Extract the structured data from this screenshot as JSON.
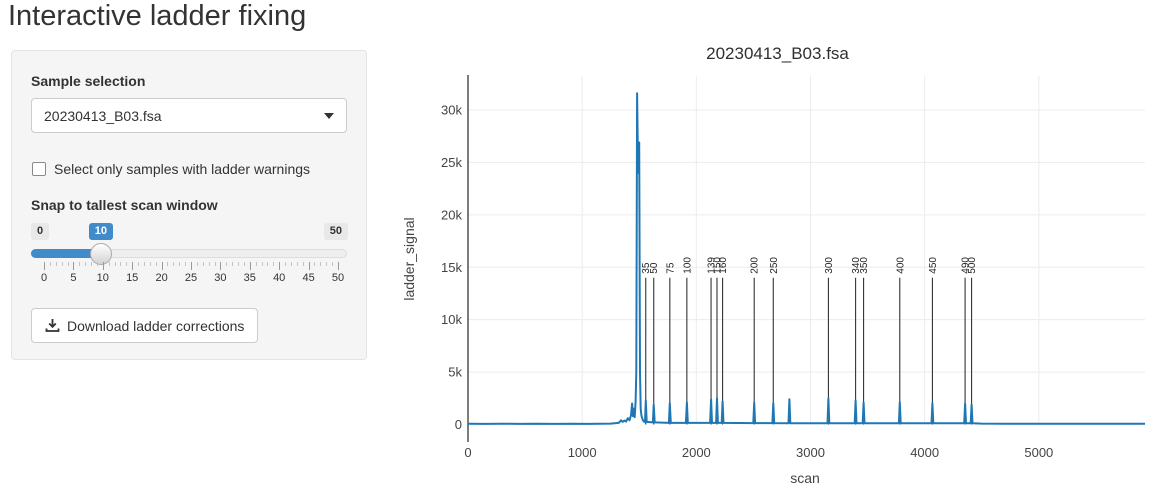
{
  "page": {
    "title": "Interactive ladder fixing"
  },
  "sidebar": {
    "sample_selection_label": "Sample selection",
    "sample_selected": "20230413_B03.fsa",
    "checkbox_label": "Select only samples with ladder warnings",
    "checkbox_checked": false,
    "slider_label": "Snap to tallest scan window",
    "slider": {
      "min": 0,
      "max": 50,
      "value": 10,
      "min_label": "0",
      "max_label": "50",
      "value_label": "10",
      "major_step": 5,
      "tick_labels": [
        "0",
        "5",
        "10",
        "15",
        "20",
        "25",
        "30",
        "35",
        "40",
        "45",
        "50"
      ]
    },
    "download_button_label": "Download ladder corrections",
    "accent_color": "#428bca"
  },
  "chart_data": {
    "type": "line",
    "title": "20230413_B03.fsa",
    "xlabel": "scan",
    "ylabel": "ladder_signal",
    "xlim": [
      0,
      5930
    ],
    "ylim": [
      -1700,
      33300
    ],
    "grid": true,
    "line_color": "#1f77b4",
    "marker_color": "#333333",
    "x_ticks": {
      "values": [
        0,
        1000,
        2000,
        3000,
        4000,
        5000
      ],
      "labels": [
        "0",
        "1000",
        "2000",
        "3000",
        "4000",
        "5000"
      ]
    },
    "y_ticks": {
      "values": [
        0,
        5000,
        10000,
        15000,
        20000,
        25000,
        30000
      ],
      "labels": [
        "0",
        "5k",
        "10k",
        "15k",
        "20k",
        "25k",
        "30k"
      ]
    },
    "ladder_markers": {
      "sizes": [
        "35",
        "50",
        "75",
        "100",
        "139",
        "150",
        "160",
        "200",
        "250",
        "300",
        "340",
        "350",
        "400",
        "450",
        "490",
        "500"
      ],
      "scans": [
        1557,
        1627,
        1768,
        1917,
        2129,
        2181,
        2230,
        2507,
        2674,
        3157,
        3395,
        3465,
        3782,
        4068,
        4354,
        4411
      ],
      "line_top": 14000
    },
    "series": [
      {
        "name": "ladder_signal",
        "points": [
          [
            0,
            70
          ],
          [
            150,
            60
          ],
          [
            300,
            80
          ],
          [
            450,
            60
          ],
          [
            600,
            75
          ],
          [
            750,
            60
          ],
          [
            900,
            75
          ],
          [
            1050,
            60
          ],
          [
            1150,
            70
          ],
          [
            1250,
            90
          ],
          [
            1320,
            150
          ],
          [
            1340,
            400
          ],
          [
            1355,
            250
          ],
          [
            1370,
            380
          ],
          [
            1385,
            280
          ],
          [
            1400,
            600
          ],
          [
            1415,
            400
          ],
          [
            1428,
            900
          ],
          [
            1437,
            2000
          ],
          [
            1444,
            800
          ],
          [
            1452,
            1500
          ],
          [
            1460,
            700
          ],
          [
            1468,
            2200
          ],
          [
            1474,
            5000
          ],
          [
            1481,
            31600
          ],
          [
            1490,
            24000
          ],
          [
            1500,
            26900
          ],
          [
            1507,
            5000
          ],
          [
            1513,
            1500
          ],
          [
            1520,
            800
          ],
          [
            1532,
            400
          ],
          [
            1543,
            250
          ],
          [
            1550,
            300
          ],
          [
            1557,
            2300
          ],
          [
            1565,
            250
          ],
          [
            1620,
            200
          ],
          [
            1627,
            1900
          ],
          [
            1635,
            200
          ],
          [
            1760,
            150
          ],
          [
            1768,
            2050
          ],
          [
            1776,
            150
          ],
          [
            1909,
            150
          ],
          [
            1917,
            2100
          ],
          [
            1925,
            150
          ],
          [
            2121,
            150
          ],
          [
            2129,
            2400
          ],
          [
            2137,
            150
          ],
          [
            2173,
            150
          ],
          [
            2181,
            2500
          ],
          [
            2189,
            150
          ],
          [
            2222,
            150
          ],
          [
            2230,
            2200
          ],
          [
            2238,
            150
          ],
          [
            2499,
            130
          ],
          [
            2507,
            2100
          ],
          [
            2515,
            130
          ],
          [
            2666,
            130
          ],
          [
            2674,
            2050
          ],
          [
            2682,
            130
          ],
          [
            2807,
            120
          ],
          [
            2815,
            2400
          ],
          [
            2823,
            120
          ],
          [
            3149,
            120
          ],
          [
            3157,
            2500
          ],
          [
            3165,
            120
          ],
          [
            3387,
            120
          ],
          [
            3395,
            2300
          ],
          [
            3403,
            120
          ],
          [
            3457,
            120
          ],
          [
            3465,
            2100
          ],
          [
            3473,
            120
          ],
          [
            3774,
            110
          ],
          [
            3782,
            2150
          ],
          [
            3790,
            110
          ],
          [
            4060,
            110
          ],
          [
            4068,
            2050
          ],
          [
            4076,
            110
          ],
          [
            4346,
            110
          ],
          [
            4354,
            2000
          ],
          [
            4362,
            110
          ],
          [
            4403,
            110
          ],
          [
            4411,
            1900
          ],
          [
            4419,
            110
          ],
          [
            4500,
            90
          ],
          [
            4700,
            70
          ],
          [
            4900,
            80
          ],
          [
            5100,
            65
          ],
          [
            5300,
            75
          ],
          [
            5500,
            65
          ],
          [
            5700,
            75
          ],
          [
            5930,
            70
          ]
        ]
      }
    ]
  }
}
